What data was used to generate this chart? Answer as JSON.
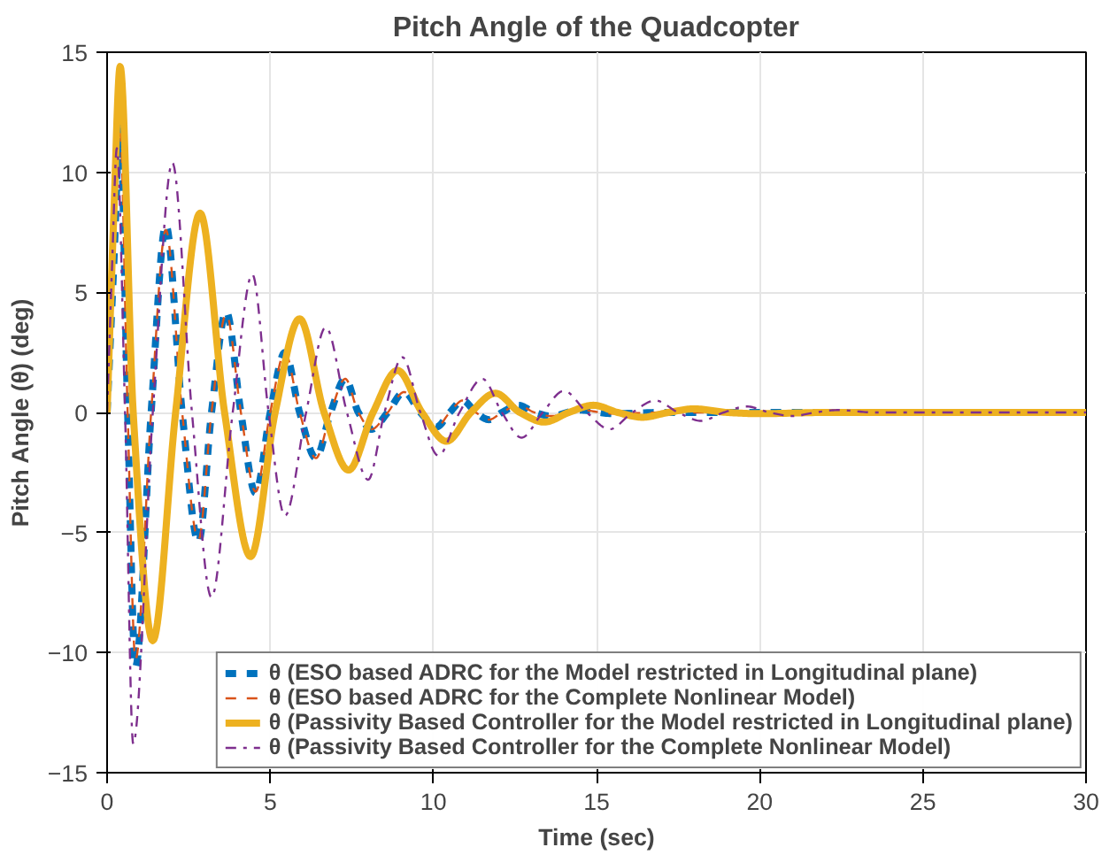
{
  "chart_data": {
    "type": "line",
    "title": "Pitch Angle of the Quadcopter",
    "xlabel": "Time (sec)",
    "ylabel": "Pitch Angle (θ) (deg)",
    "xlim": [
      0,
      30
    ],
    "ylim": [
      -15,
      15
    ],
    "xticks": [
      0,
      5,
      10,
      15,
      20,
      25,
      30
    ],
    "yticks": [
      -15,
      -10,
      -5,
      0,
      5,
      10,
      15
    ],
    "grid": true,
    "legend": "bottom right",
    "series": [
      {
        "name": "θ (ESO based ADRC for the Model restricted in Longitudinal plane)",
        "color": "#0072bd",
        "line_style": "dashed",
        "x": [
          0,
          0.2,
          0.4,
          0.63,
          0.87,
          1.35,
          1.8,
          2.3,
          2.8,
          3.2,
          3.65,
          4.1,
          4.55,
          5.0,
          5.45,
          5.9,
          6.4,
          6.85,
          7.3,
          7.7,
          8.1,
          8.6,
          9.1,
          9.6,
          10.1,
          10.5,
          10.9,
          11.3,
          11.7,
          12.1,
          12.6,
          13.1,
          13.6,
          14.5,
          15.5,
          17,
          30
        ],
        "values": [
          0,
          6,
          11.9,
          0,
          -10.6,
          0,
          7.8,
          0,
          -5.4,
          0,
          4.2,
          0,
          -3.35,
          0,
          2.5,
          0,
          -1.9,
          0,
          1.4,
          0,
          -0.7,
          0,
          0.85,
          0,
          -0.6,
          0,
          0.5,
          0,
          -0.3,
          0,
          0.3,
          0,
          -0.15,
          0.1,
          -0.05,
          0,
          0
        ]
      },
      {
        "name": "θ (ESO based ADRC for the Complete Nonlinear Model)",
        "color": "#d95319",
        "line_style": "dashed",
        "x": [
          0,
          0.2,
          0.4,
          0.63,
          0.87,
          1.35,
          1.8,
          2.3,
          2.8,
          3.2,
          3.65,
          4.1,
          4.55,
          5.0,
          5.45,
          5.9,
          6.4,
          6.85,
          7.3,
          7.7,
          8.1,
          8.6,
          9.1,
          9.6,
          10.1,
          10.5,
          10.9,
          11.3,
          11.7,
          12.1,
          12.6,
          13.1,
          13.6,
          14.5,
          15.5,
          17,
          30
        ],
        "values": [
          0,
          6,
          11.6,
          0,
          -10.3,
          0,
          7.6,
          0,
          -5.3,
          0,
          4.1,
          0,
          -3.3,
          0,
          2.5,
          0,
          -1.9,
          0,
          1.4,
          0,
          -0.7,
          0,
          0.85,
          0,
          -0.6,
          0,
          0.5,
          0,
          -0.3,
          0,
          0.3,
          0,
          -0.15,
          0.1,
          -0.05,
          0,
          0
        ]
      },
      {
        "name": "θ (Passivity Based Controller for the Model restricted in Longitudinal plane)",
        "color": "#edb120",
        "line_style": "solid",
        "x": [
          0,
          0.2,
          0.4,
          0.8,
          1.4,
          2.1,
          2.85,
          3.6,
          4.4,
          5.15,
          5.9,
          6.65,
          7.4,
          8.15,
          8.9,
          9.65,
          10.4,
          11.15,
          11.9,
          12.65,
          13.4,
          14.15,
          14.9,
          15.65,
          16.4,
          17.2,
          18,
          19,
          20,
          22,
          30
        ],
        "values": [
          0,
          8,
          14.4,
          0,
          -9.5,
          0,
          8.3,
          0,
          -6.0,
          0,
          3.9,
          0,
          -2.4,
          0,
          1.75,
          0,
          -1.2,
          0,
          0.8,
          0,
          -0.4,
          0,
          0.3,
          0,
          -0.2,
          0,
          0.15,
          0,
          -0.05,
          0,
          0
        ]
      },
      {
        "name": "θ (Passivity Based Controller for the Complete Nonlinear Model)",
        "color": "#7e2f8e",
        "line_style": "dashdot",
        "x": [
          0,
          0.15,
          0.3,
          0.55,
          0.8,
          1.4,
          2.0,
          2.6,
          3.2,
          3.85,
          4.45,
          4.95,
          5.45,
          6.1,
          6.7,
          7.35,
          8.0,
          8.5,
          9.05,
          9.6,
          10.15,
          10.8,
          11.5,
          12.1,
          12.7,
          13.35,
          14.0,
          14.7,
          15.4,
          16.1,
          16.8,
          17.5,
          18.2,
          18.9,
          19.6,
          20.3,
          21,
          21.7,
          22.4,
          23.5,
          30
        ],
        "values": [
          0,
          6,
          11.0,
          0,
          -13.8,
          0,
          10.4,
          0,
          -7.7,
          0,
          5.75,
          0,
          -4.3,
          0,
          3.55,
          0,
          -2.8,
          0,
          2.3,
          0,
          -1.8,
          0,
          1.4,
          0,
          -1.05,
          0,
          0.9,
          0,
          -0.7,
          0,
          0.5,
          0,
          -0.35,
          0,
          0.25,
          0,
          -0.15,
          0,
          0.1,
          0,
          0
        ]
      }
    ]
  }
}
